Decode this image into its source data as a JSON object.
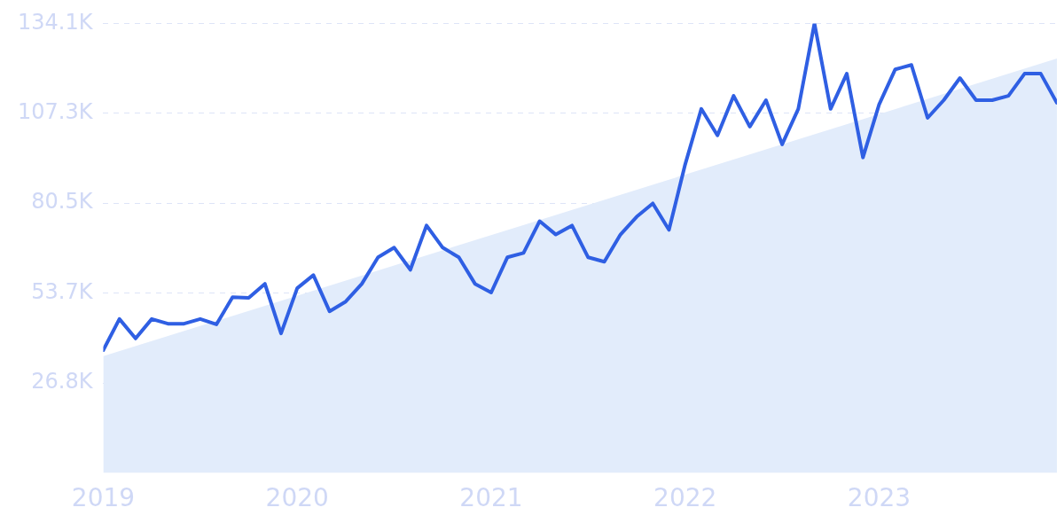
{
  "chart_data": {
    "type": "line",
    "x": [
      "2019-01",
      "2019-02",
      "2019-03",
      "2019-04",
      "2019-05",
      "2019-06",
      "2019-07",
      "2019-08",
      "2019-09",
      "2019-10",
      "2019-11",
      "2019-12",
      "2020-01",
      "2020-02",
      "2020-03",
      "2020-04",
      "2020-05",
      "2020-06",
      "2020-07",
      "2020-08",
      "2020-09",
      "2020-10",
      "2020-11",
      "2020-12",
      "2021-01",
      "2021-02",
      "2021-03",
      "2021-04",
      "2021-05",
      "2021-06",
      "2021-07",
      "2021-08",
      "2021-09",
      "2021-10",
      "2021-11",
      "2021-12",
      "2022-01",
      "2022-02",
      "2022-03",
      "2022-04",
      "2022-05",
      "2022-06",
      "2022-07",
      "2022-08",
      "2022-09",
      "2022-10",
      "2022-11",
      "2022-12",
      "2023-01",
      "2023-02",
      "2023-03",
      "2023-04",
      "2023-05",
      "2023-06",
      "2023-07",
      "2023-08",
      "2023-09",
      "2023-10",
      "2023-11",
      "2023-12"
    ],
    "series": [
      {
        "color": "#2f5fe3",
        "values": [
          36.6,
          45.9,
          40.1,
          45.9,
          44.5,
          44.5,
          45.9,
          44.3,
          52.4,
          52.2,
          56.4,
          41.6,
          55.1,
          59.0,
          48.2,
          51.1,
          56.4,
          64.3,
          67.2,
          60.6,
          73.8,
          67.2,
          64.3,
          56.4,
          53.8,
          64.3,
          65.6,
          75.1,
          71.1,
          73.8,
          64.3,
          63.0,
          71.1,
          76.4,
          80.4,
          72.5,
          92.0,
          108.6,
          100.7,
          112.5,
          103.3,
          111.2,
          98.0,
          108.6,
          134.1,
          108.6,
          119.1,
          94.1,
          109.9,
          120.4,
          121.7,
          105.9,
          111.2,
          117.8,
          111.2,
          111.2,
          112.5,
          119.1,
          119.1,
          110.4
        ]
      },
      {
        "type": "area",
        "color": "#e2ecfb",
        "x": [
          "2019-01",
          "2023-12"
        ],
        "values": [
          34.8,
          123.6
        ]
      }
    ],
    "xlim": [
      "2019-01",
      "2023-12"
    ],
    "xticks": [
      "2019",
      "2020",
      "2021",
      "2022",
      "2023"
    ],
    "ylim": [
      0,
      134.1
    ],
    "yticks": [
      {
        "value": 26.8,
        "label": "26.8K"
      },
      {
        "value": 53.7,
        "label": "53.7K"
      },
      {
        "value": 80.5,
        "label": "80.5K"
      },
      {
        "value": 107.3,
        "label": "107.3K"
      },
      {
        "value": 134.1,
        "label": "134.1K"
      }
    ],
    "grid": "y",
    "legend": false,
    "marker": "none"
  }
}
